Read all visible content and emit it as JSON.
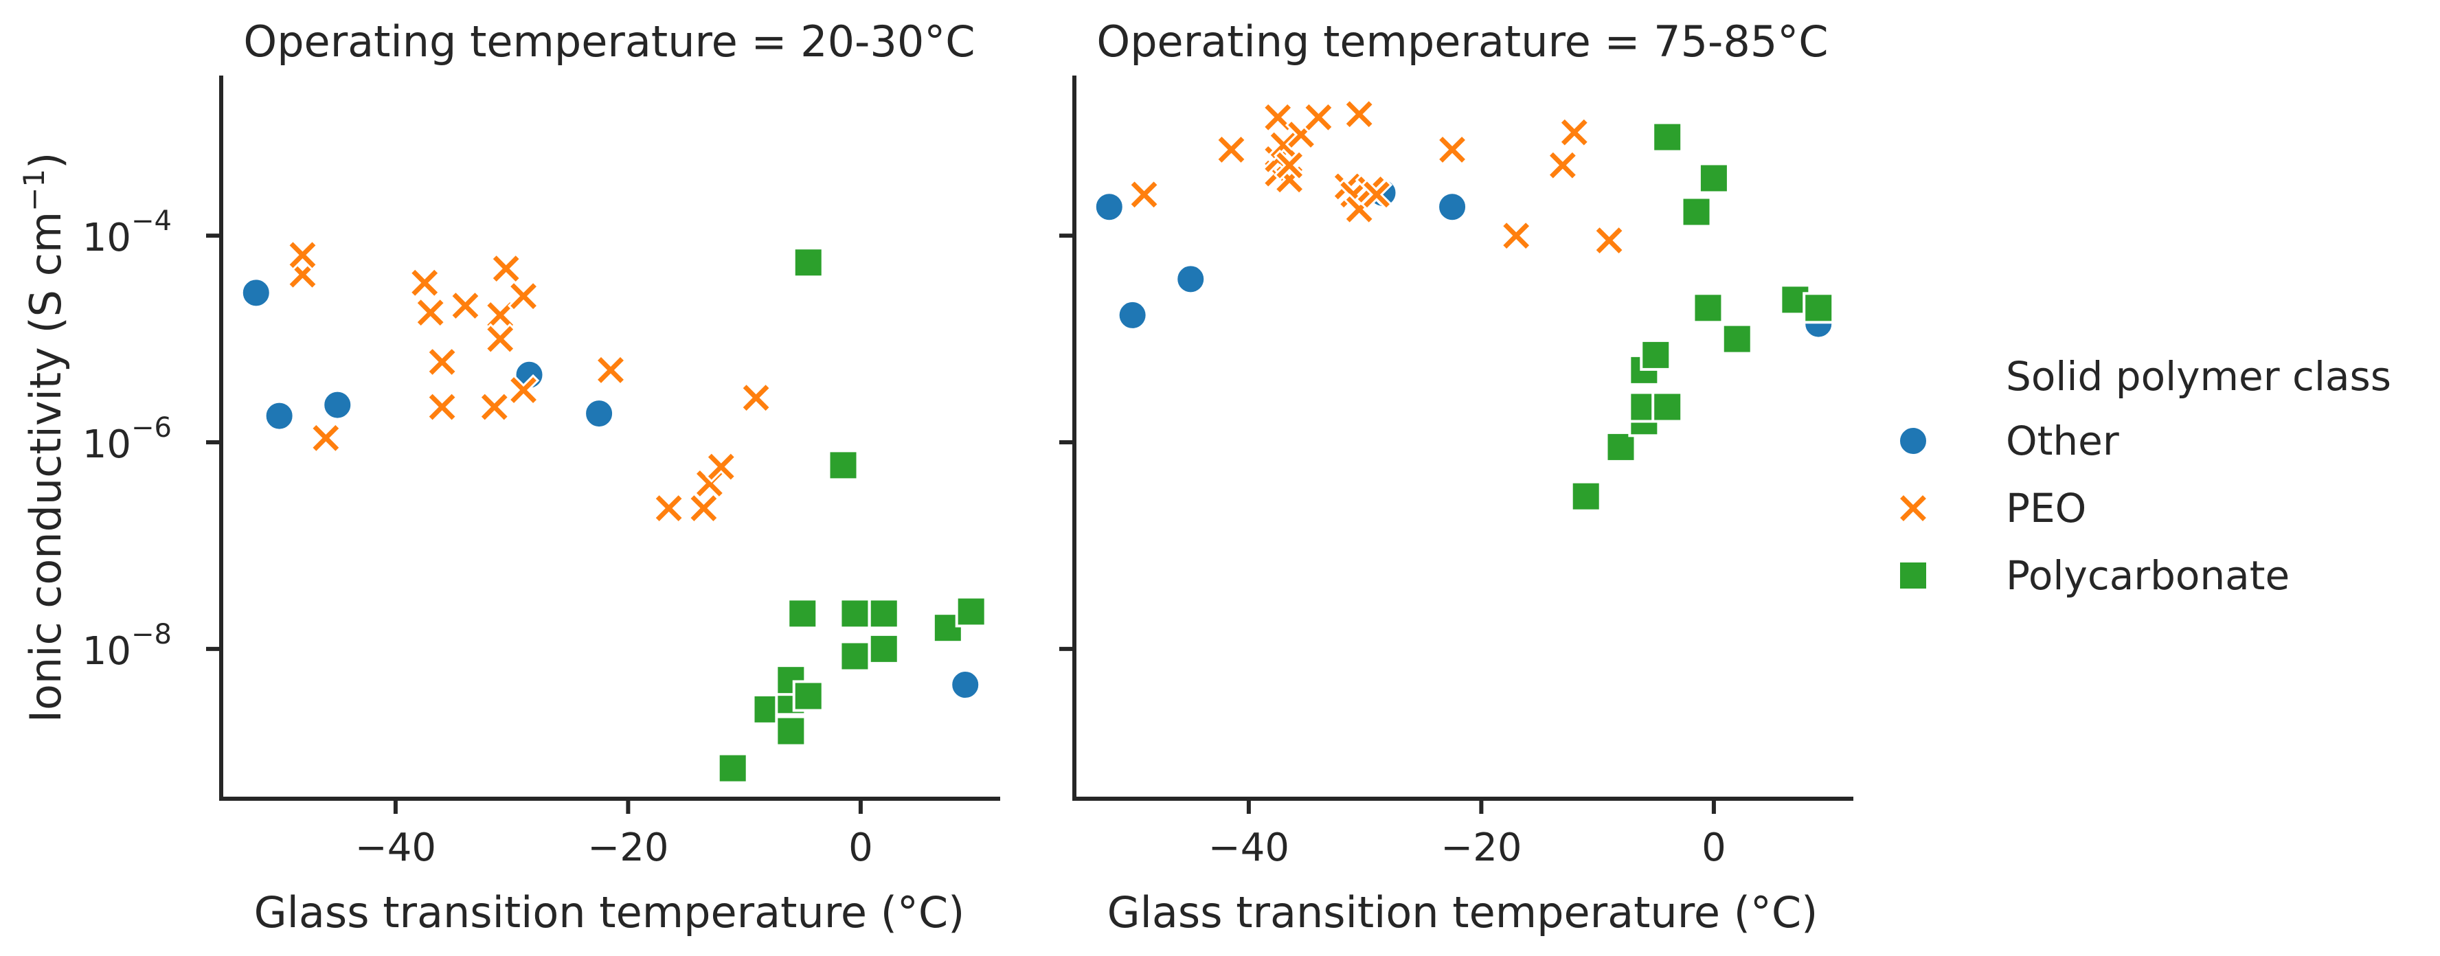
{
  "colors": {
    "Other": "#1f77b4",
    "PEO": "#ff7f0e",
    "Polycarbonate": "#2ca02c",
    "axis": "#262626"
  },
  "markers": {
    "Other": "circle",
    "PEO": "x",
    "Polycarbonate": "square"
  },
  "legend": {
    "title": "Solid polymer class",
    "items": [
      {
        "label": "Other",
        "series": "Other"
      },
      {
        "label": "PEO",
        "series": "PEO"
      },
      {
        "label": "Polycarbonate",
        "series": "Polycarbonate"
      }
    ]
  },
  "ylabel": {
    "main": "Ionic conductivity (S cm",
    "sup": "−1",
    "tail": ")"
  },
  "chart_data": [
    {
      "type": "scatter",
      "title": "Operating temperature = 20-30°C",
      "xlabel": "Glass transition temperature (°C)",
      "ylabel": "Ionic conductivity (S cm−1)",
      "xlim": [
        -55,
        12
      ],
      "ylog": true,
      "ylim_log10": [
        -9.45,
        -2.45
      ],
      "xticks": [
        -40,
        -20,
        0
      ],
      "yticks_log10": [
        -4,
        -6,
        -8
      ],
      "xtick_labels": [
        "−40",
        "−20",
        "0"
      ],
      "series": [
        {
          "name": "Other",
          "points": [
            [
              -52,
              2.8e-05
            ],
            [
              -50,
              1.8e-06
            ],
            [
              -45,
              2.3e-06
            ],
            [
              -28.5,
              4.5e-06
            ],
            [
              -22.5,
              1.9e-06
            ],
            [
              9,
              4.5e-09
            ]
          ]
        },
        {
          "name": "PEO",
          "points": [
            [
              -48,
              4.2e-05
            ],
            [
              -48,
              6.5e-05
            ],
            [
              -46,
              1.1e-06
            ],
            [
              -37.5,
              3.5e-05
            ],
            [
              -37,
              1.8e-05
            ],
            [
              -36,
              6e-06
            ],
            [
              -36,
              2.2e-06
            ],
            [
              -34,
              2.1e-05
            ],
            [
              -31.5,
              2.2e-06
            ],
            [
              -31,
              1.7e-05
            ],
            [
              -31,
              1e-05
            ],
            [
              -30.5,
              4.8e-05
            ],
            [
              -29,
              2.6e-05
            ],
            [
              -29,
              3.2e-06
            ],
            [
              -21.5,
              5e-06
            ],
            [
              -16.5,
              2.3e-07
            ],
            [
              -13.5,
              2.3e-07
            ],
            [
              -13,
              4e-07
            ],
            [
              -12,
              5.8e-07
            ],
            [
              -9,
              2.7e-06
            ]
          ]
        },
        {
          "name": "Polycarbonate",
          "points": [
            [
              -11,
              7e-10
            ],
            [
              -8,
              2.6e-09
            ],
            [
              -6,
              1.6e-09
            ],
            [
              -6,
              3.2e-09
            ],
            [
              -6,
              5e-09
            ],
            [
              -4.5,
              3.5e-09
            ],
            [
              -5,
              2.2e-08
            ],
            [
              -4.5,
              5.5e-05
            ],
            [
              -1.5,
              6e-07
            ],
            [
              -0.5,
              2.2e-08
            ],
            [
              2,
              2.2e-08
            ],
            [
              2,
              1e-08
            ],
            [
              -0.5,
              8.5e-09
            ],
            [
              7.5,
              1.6e-08
            ],
            [
              9.5,
              2.3e-08
            ]
          ]
        }
      ]
    },
    {
      "type": "scatter",
      "title": "Operating temperature = 75-85°C",
      "xlabel": "Glass transition temperature (°C)",
      "xlim": [
        -55,
        12
      ],
      "ylog": true,
      "ylim_log10": [
        -9.45,
        -2.45
      ],
      "xticks": [
        -40,
        -20,
        0
      ],
      "yticks_log10": [
        -4,
        -6,
        -8
      ],
      "xtick_labels": [
        "−40",
        "−20",
        "0"
      ],
      "series": [
        {
          "name": "Other",
          "points": [
            [
              -52,
              0.00019
            ],
            [
              -50,
              1.7e-05
            ],
            [
              -45,
              3.8e-05
            ],
            [
              -28.5,
              0.00026
            ],
            [
              -22.5,
              0.00019
            ],
            [
              9,
              1.4e-05
            ]
          ]
        },
        {
          "name": "PEO",
          "points": [
            [
              -49,
              0.00025
            ],
            [
              -41.5,
              0.00068
            ],
            [
              -37.5,
              0.0014
            ],
            [
              -37.5,
              0.0004
            ],
            [
              -37.5,
              0.00055
            ],
            [
              -37,
              0.00075
            ],
            [
              -36.5,
              0.00035
            ],
            [
              -36.5,
              0.00048
            ],
            [
              -35.5,
              0.00095
            ],
            [
              -34,
              0.0014
            ],
            [
              -31.5,
              0.0003
            ],
            [
              -31,
              0.00025
            ],
            [
              -30.5,
              0.00018
            ],
            [
              -30.5,
              0.0015
            ],
            [
              -29.5,
              0.00028
            ],
            [
              -29,
              0.00025
            ],
            [
              -22.5,
              0.00068
            ],
            [
              -17,
              0.0001
            ],
            [
              -13,
              0.00048
            ],
            [
              -12,
              0.001
            ],
            [
              -9,
              9e-05
            ]
          ]
        },
        {
          "name": "Polycarbonate",
          "points": [
            [
              -11,
              3e-07
            ],
            [
              -8,
              9e-07
            ],
            [
              -6,
              1.6e-06
            ],
            [
              -6,
              2.2e-06
            ],
            [
              -6,
              5e-06
            ],
            [
              -5,
              7e-06
            ],
            [
              -4,
              2.2e-06
            ],
            [
              -4,
              0.0009
            ],
            [
              -1.5,
              0.00017
            ],
            [
              0,
              0.00036
            ],
            [
              -0.5,
              2e-05
            ],
            [
              2,
              1e-05
            ],
            [
              7,
              2.4e-05
            ],
            [
              9,
              2e-05
            ]
          ]
        }
      ]
    }
  ]
}
